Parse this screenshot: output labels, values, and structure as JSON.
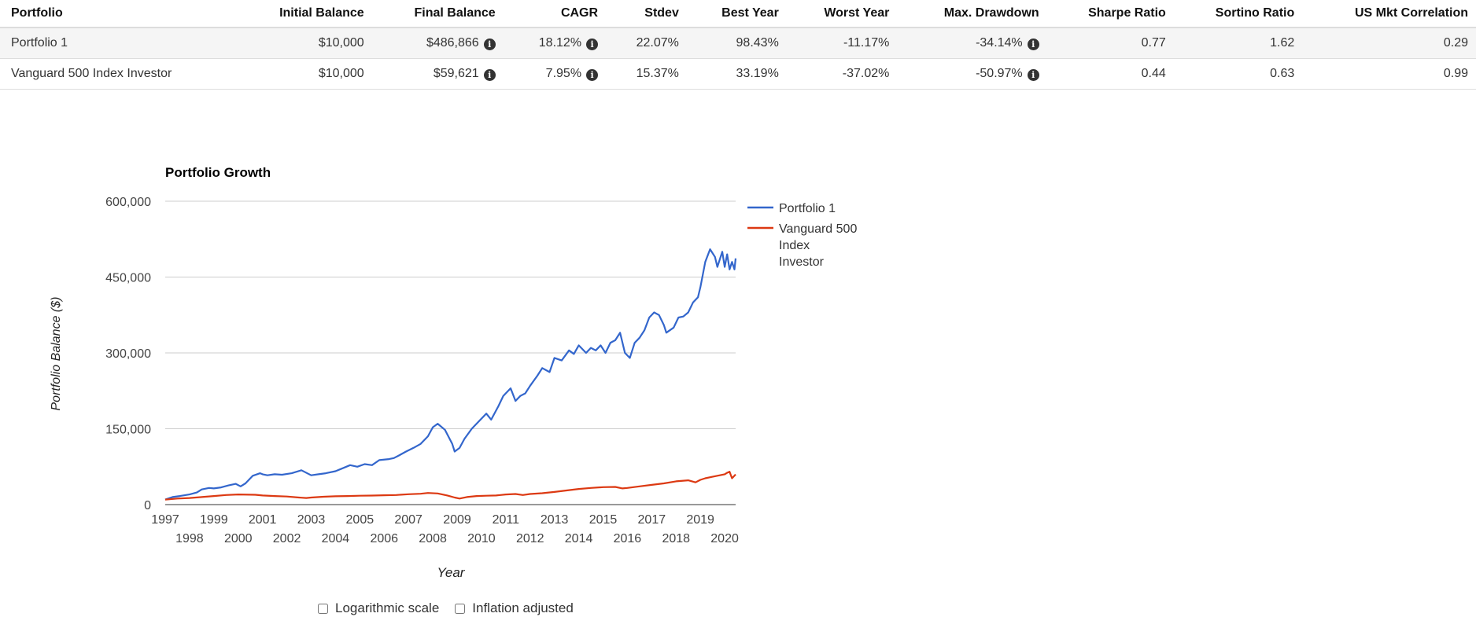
{
  "table": {
    "headers": [
      "Portfolio",
      "Initial Balance",
      "Final Balance",
      "CAGR",
      "Stdev",
      "Best Year",
      "Worst Year",
      "Max. Drawdown",
      "Sharpe Ratio",
      "Sortino Ratio",
      "US Mkt Correlation"
    ],
    "rows": [
      {
        "portfolio": "Portfolio 1",
        "initial_balance": "$10,000",
        "final_balance": "$486,866",
        "cagr": "18.12%",
        "stdev": "22.07%",
        "best_year": "98.43%",
        "worst_year": "-11.17%",
        "max_drawdown": "-34.14%",
        "sharpe": "0.77",
        "sortino": "1.62",
        "correlation": "0.29"
      },
      {
        "portfolio": "Vanguard 500 Index Investor",
        "initial_balance": "$10,000",
        "final_balance": "$59,621",
        "cagr": "7.95%",
        "stdev": "15.37%",
        "best_year": "33.19%",
        "worst_year": "-37.02%",
        "max_drawdown": "-50.97%",
        "sharpe": "0.44",
        "sortino": "0.63",
        "correlation": "0.99"
      }
    ],
    "info_icon": "info-circle-icon"
  },
  "chart_data": {
    "type": "line",
    "title": "Portfolio Growth",
    "xlabel": "Year",
    "ylabel": "Portfolio Balance ($)",
    "xlim": [
      1997,
      2020.45
    ],
    "ylim": [
      0,
      600000
    ],
    "y_ticks": [
      0,
      150000,
      300000,
      450000,
      600000
    ],
    "y_tick_labels": [
      "0",
      "150,000",
      "300,000",
      "450,000",
      "600,000"
    ],
    "x_ticks_upper": [
      "1997",
      "1999",
      "2001",
      "2003",
      "2005",
      "2007",
      "2009",
      "2011",
      "2013",
      "2015",
      "2017",
      "2019"
    ],
    "x_ticks_lower": [
      "1998",
      "2000",
      "2002",
      "2004",
      "2006",
      "2008",
      "2010",
      "2012",
      "2014",
      "2016",
      "2018",
      "2020"
    ],
    "grid": true,
    "legend_position": "right",
    "series": [
      {
        "name": "Portfolio 1",
        "color": "#3366cc",
        "x": [
          1997.0,
          1997.3,
          1997.6,
          1998.0,
          1998.3,
          1998.5,
          1998.8,
          1999.0,
          1999.3,
          1999.6,
          1999.9,
          2000.1,
          2000.3,
          2000.6,
          2000.9,
          2001.0,
          2001.2,
          2001.5,
          2001.8,
          2002.2,
          2002.6,
          2003.0,
          2003.3,
          2003.6,
          2004.0,
          2004.3,
          2004.6,
          2004.9,
          2005.2,
          2005.5,
          2005.8,
          2006.2,
          2006.4,
          2006.6,
          2006.9,
          2007.2,
          2007.5,
          2007.8,
          2008.0,
          2008.2,
          2008.5,
          2008.8,
          2008.9,
          2009.1,
          2009.3,
          2009.6,
          2009.9,
          2010.2,
          2010.4,
          2010.7,
          2010.9,
          2011.2,
          2011.4,
          2011.6,
          2011.8,
          2012.0,
          2012.3,
          2012.5,
          2012.8,
          2013.0,
          2013.3,
          2013.6,
          2013.8,
          2014.0,
          2014.3,
          2014.5,
          2014.7,
          2014.9,
          2015.1,
          2015.3,
          2015.5,
          2015.7,
          2015.9,
          2016.1,
          2016.3,
          2016.5,
          2016.7,
          2016.9,
          2017.1,
          2017.3,
          2017.5,
          2017.6,
          2017.9,
          2018.1,
          2018.3,
          2018.5,
          2018.7,
          2018.9,
          2019.0,
          2019.2,
          2019.4,
          2019.6,
          2019.7,
          2019.9,
          2020.0,
          2020.1,
          2020.2,
          2020.3,
          2020.4,
          2020.45
        ],
        "values": [
          10000,
          15000,
          17000,
          20000,
          24000,
          30000,
          33000,
          32000,
          34000,
          38000,
          41000,
          36000,
          42000,
          57000,
          62000,
          60000,
          58000,
          60000,
          59000,
          62000,
          68000,
          58000,
          60000,
          62000,
          66000,
          72000,
          78000,
          75000,
          80000,
          78000,
          88000,
          90000,
          92000,
          97000,
          105000,
          112000,
          120000,
          135000,
          153000,
          160000,
          148000,
          120000,
          105000,
          112000,
          130000,
          150000,
          165000,
          180000,
          168000,
          195000,
          215000,
          230000,
          205000,
          215000,
          220000,
          235000,
          255000,
          270000,
          262000,
          290000,
          285000,
          305000,
          298000,
          315000,
          300000,
          310000,
          305000,
          315000,
          300000,
          320000,
          325000,
          340000,
          300000,
          290000,
          320000,
          330000,
          345000,
          370000,
          380000,
          375000,
          355000,
          340000,
          350000,
          370000,
          372000,
          380000,
          400000,
          410000,
          430000,
          480000,
          505000,
          490000,
          470000,
          500000,
          470000,
          495000,
          465000,
          480000,
          465000,
          486866
        ]
      },
      {
        "name": "Vanguard 500 Index Investor",
        "color": "#dc3912",
        "x": [
          1997.0,
          1997.5,
          1998.0,
          1998.5,
          1999.0,
          1999.5,
          2000.0,
          2000.7,
          2001.0,
          2001.5,
          2002.0,
          2002.5,
          2002.8,
          2003.0,
          2003.5,
          2004.0,
          2004.5,
          2005.0,
          2005.5,
          2006.0,
          2006.5,
          2007.0,
          2007.5,
          2007.8,
          2008.2,
          2008.6,
          2008.9,
          2009.1,
          2009.4,
          2009.8,
          2010.2,
          2010.6,
          2011.0,
          2011.4,
          2011.7,
          2012.0,
          2012.5,
          2013.0,
          2013.5,
          2014.0,
          2014.5,
          2015.0,
          2015.5,
          2015.8,
          2016.0,
          2016.5,
          2017.0,
          2017.5,
          2018.0,
          2018.5,
          2018.8,
          2019.0,
          2019.2,
          2019.5,
          2019.8,
          2020.0,
          2020.1,
          2020.2,
          2020.3,
          2020.45
        ],
        "values": [
          10000,
          12000,
          13000,
          15000,
          17000,
          19000,
          20000,
          19500,
          18000,
          17000,
          16000,
          14000,
          13000,
          14000,
          15500,
          16500,
          17000,
          17500,
          17800,
          18500,
          19000,
          20500,
          21500,
          23000,
          22000,
          18000,
          14000,
          12000,
          15000,
          17000,
          17500,
          18000,
          20000,
          21000,
          19000,
          21000,
          22500,
          25000,
          28000,
          31000,
          33000,
          34500,
          35000,
          32000,
          33000,
          36000,
          39000,
          42000,
          46000,
          48000,
          44000,
          49000,
          52000,
          55000,
          58000,
          60000,
          63000,
          65000,
          52000,
          59621
        ]
      }
    ]
  },
  "options": {
    "log_scale_label": "Logarithmic scale",
    "inflation_label": "Inflation adjusted"
  }
}
